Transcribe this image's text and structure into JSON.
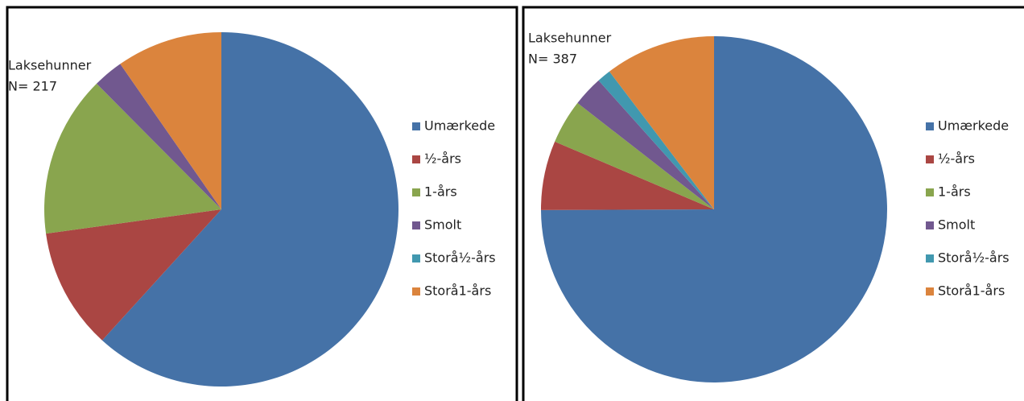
{
  "chart_data": [
    {
      "type": "pie",
      "annotations": [
        "Laksehunner",
        "N= 217"
      ],
      "categories": [
        "Umærkede",
        "½-års",
        "1-års",
        "Smolt",
        "Storå½-års",
        "Storå1-års"
      ],
      "values": [
        134,
        24,
        32,
        6,
        0,
        21
      ],
      "colors": [
        "#4572a7",
        "#aa4643",
        "#89a54e",
        "#71588f",
        "#4198af",
        "#db843d"
      ],
      "legend": "right"
    },
    {
      "type": "pie",
      "annotations": [
        "Laksehunner",
        "N= 387"
      ],
      "categories": [
        "Umærkede",
        "½-års",
        "1-års",
        "Smolt",
        "Storå½-års",
        "Storå1-års"
      ],
      "values": [
        290,
        25,
        16,
        11,
        5,
        40
      ],
      "colors": [
        "#4572a7",
        "#aa4643",
        "#89a54e",
        "#71588f",
        "#4198af",
        "#db843d"
      ],
      "legend": "right"
    }
  ]
}
